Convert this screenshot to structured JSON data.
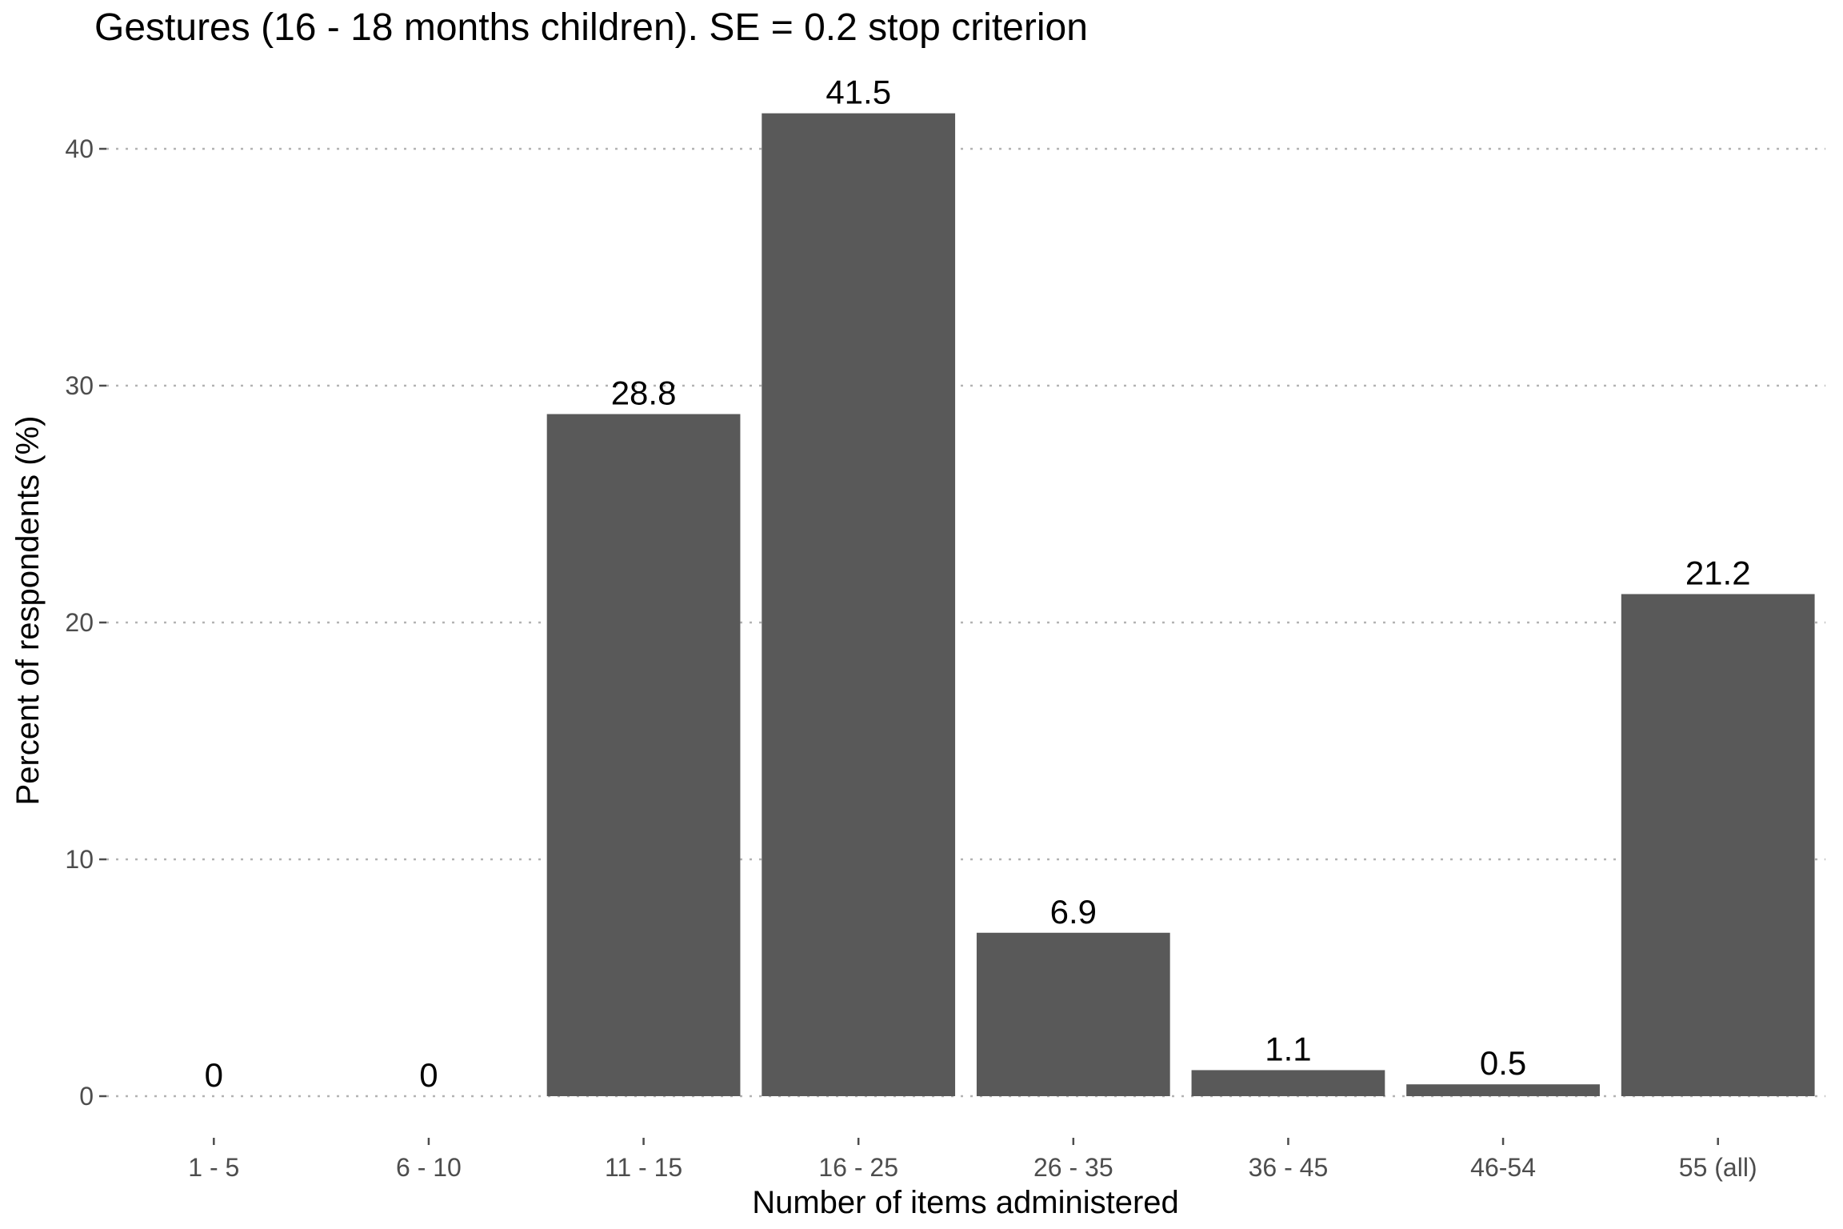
{
  "chart_data": {
    "type": "bar",
    "title": "Gestures (16 - 18 months children). SE = 0.2 stop criterion",
    "xlabel": "Number of items administered",
    "ylabel": "Percent of respondents (%)",
    "categories": [
      "1 - 5",
      "6 - 10",
      "11 - 15",
      "16 - 25",
      "26 - 35",
      "36 - 45",
      "46-54",
      "55 (all)"
    ],
    "values": [
      0,
      0,
      28.8,
      41.5,
      6.9,
      1.1,
      0.5,
      21.2
    ],
    "data_labels": [
      "0",
      "0",
      "28.8",
      "41.5",
      "6.9",
      "1.1",
      "0.5",
      "21.2"
    ],
    "y_ticks": [
      0,
      10,
      20,
      30,
      40
    ],
    "y_tick_labels": [
      "0",
      "10",
      "20",
      "30",
      "40"
    ],
    "ylim": [
      0,
      41.5
    ],
    "grid": "horizontal dotted",
    "legend": "none",
    "colors": {
      "bar": "#595959",
      "grid": "#b3b3b3",
      "tick_text": "#4d4d4d",
      "text": "#000000",
      "background": "#ffffff"
    }
  }
}
